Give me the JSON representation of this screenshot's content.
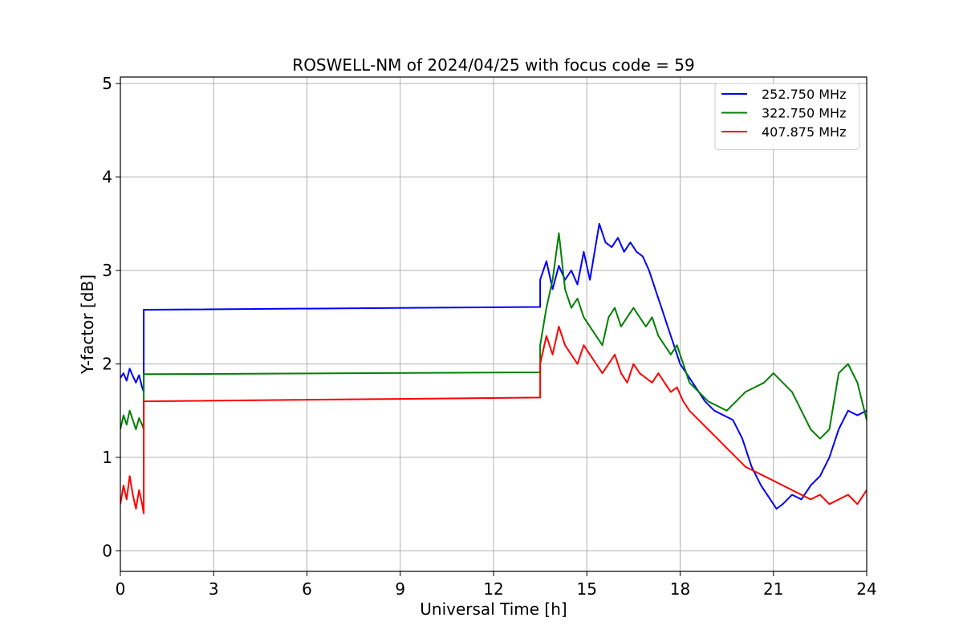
{
  "chart_data": {
    "type": "line",
    "title": "ROSWELL-NM of 2024/04/25 with focus code = 59",
    "xlabel": "Universal Time [h]",
    "ylabel": "Y-factor [dB]",
    "xlim": [
      0,
      24
    ],
    "ylim": [
      -0.22,
      5.07
    ],
    "xticks": [
      0,
      3,
      6,
      9,
      12,
      15,
      18,
      21,
      24
    ],
    "yticks": [
      0,
      1,
      2,
      3,
      4,
      5
    ],
    "grid": true,
    "legend_position": "top-right",
    "series": [
      {
        "name": "252.750 MHz",
        "color": "#0000ff",
        "x": [
          0.0,
          0.1,
          0.2,
          0.3,
          0.4,
          0.5,
          0.6,
          0.7,
          0.75,
          0.75,
          13.5,
          13.5,
          13.7,
          13.9,
          14.1,
          14.3,
          14.5,
          14.7,
          14.9,
          15.1,
          15.3,
          15.4,
          15.6,
          15.8,
          16.0,
          16.2,
          16.4,
          16.6,
          16.8,
          17.0,
          17.2,
          17.4,
          17.6,
          17.8,
          18.0,
          18.2,
          18.5,
          18.8,
          19.1,
          19.4,
          19.7,
          20.0,
          20.3,
          20.6,
          20.9,
          21.1,
          21.3,
          21.6,
          21.9,
          22.2,
          22.5,
          22.8,
          23.1,
          23.4,
          23.7,
          24.0
        ],
        "y": [
          1.85,
          1.9,
          1.82,
          1.95,
          1.87,
          1.8,
          1.88,
          1.75,
          1.7,
          2.58,
          2.61,
          2.9,
          3.1,
          2.8,
          3.05,
          2.9,
          3.0,
          2.85,
          3.2,
          2.9,
          3.3,
          3.5,
          3.3,
          3.25,
          3.35,
          3.2,
          3.3,
          3.2,
          3.15,
          3.0,
          2.8,
          2.6,
          2.4,
          2.2,
          2.0,
          1.9,
          1.75,
          1.6,
          1.5,
          1.45,
          1.4,
          1.2,
          0.9,
          0.7,
          0.55,
          0.45,
          0.5,
          0.6,
          0.55,
          0.7,
          0.8,
          1.0,
          1.3,
          1.5,
          1.45,
          1.5
        ]
      },
      {
        "name": "322.750 MHz",
        "color": "#008000",
        "x": [
          0.0,
          0.1,
          0.2,
          0.3,
          0.4,
          0.5,
          0.6,
          0.7,
          0.75,
          0.75,
          13.5,
          13.5,
          13.7,
          13.9,
          14.1,
          14.3,
          14.5,
          14.7,
          14.9,
          15.1,
          15.3,
          15.5,
          15.7,
          15.9,
          16.1,
          16.3,
          16.5,
          16.7,
          16.9,
          17.1,
          17.3,
          17.5,
          17.7,
          17.9,
          18.1,
          18.3,
          18.6,
          18.9,
          19.2,
          19.5,
          19.8,
          20.1,
          20.4,
          20.7,
          21.0,
          21.3,
          21.6,
          21.9,
          22.2,
          22.5,
          22.8,
          23.1,
          23.4,
          23.7,
          24.0
        ],
        "y": [
          1.3,
          1.45,
          1.35,
          1.5,
          1.4,
          1.3,
          1.42,
          1.35,
          1.3,
          1.89,
          1.91,
          2.2,
          2.6,
          2.9,
          3.4,
          2.8,
          2.6,
          2.7,
          2.5,
          2.4,
          2.3,
          2.2,
          2.5,
          2.6,
          2.4,
          2.5,
          2.6,
          2.5,
          2.4,
          2.5,
          2.3,
          2.2,
          2.1,
          2.2,
          2.0,
          1.8,
          1.7,
          1.6,
          1.55,
          1.5,
          1.6,
          1.7,
          1.75,
          1.8,
          1.9,
          1.8,
          1.7,
          1.5,
          1.3,
          1.2,
          1.3,
          1.9,
          2.0,
          1.8,
          1.4
        ]
      },
      {
        "name": "407.875 MHz",
        "color": "#ff0000",
        "x": [
          0.0,
          0.1,
          0.2,
          0.3,
          0.4,
          0.5,
          0.6,
          0.7,
          0.75,
          0.75,
          13.5,
          13.5,
          13.7,
          13.9,
          14.1,
          14.3,
          14.5,
          14.7,
          14.9,
          15.1,
          15.3,
          15.5,
          15.7,
          15.9,
          16.1,
          16.3,
          16.5,
          16.7,
          16.9,
          17.1,
          17.3,
          17.5,
          17.7,
          17.9,
          18.1,
          18.3,
          18.6,
          18.9,
          19.2,
          19.5,
          19.8,
          20.1,
          20.4,
          20.7,
          21.0,
          21.3,
          21.6,
          21.9,
          22.2,
          22.5,
          22.8,
          23.1,
          23.4,
          23.7,
          24.0
        ],
        "y": [
          0.5,
          0.7,
          0.55,
          0.8,
          0.6,
          0.45,
          0.65,
          0.5,
          0.4,
          1.6,
          1.64,
          2.0,
          2.3,
          2.1,
          2.4,
          2.2,
          2.1,
          2.0,
          2.2,
          2.1,
          2.0,
          1.9,
          2.0,
          2.1,
          1.9,
          1.8,
          2.0,
          1.9,
          1.85,
          1.8,
          1.9,
          1.8,
          1.7,
          1.75,
          1.6,
          1.5,
          1.4,
          1.3,
          1.2,
          1.1,
          1.0,
          0.9,
          0.85,
          0.8,
          0.75,
          0.7,
          0.65,
          0.6,
          0.55,
          0.6,
          0.5,
          0.55,
          0.6,
          0.5,
          0.65
        ]
      }
    ]
  }
}
